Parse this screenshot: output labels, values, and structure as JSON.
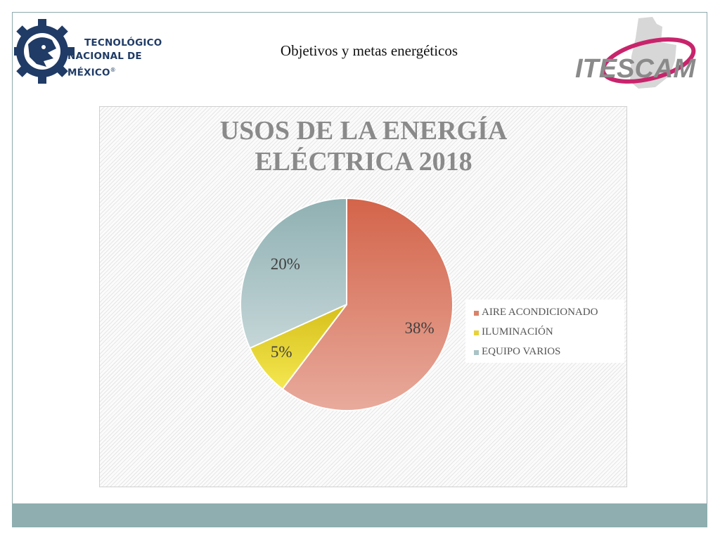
{
  "header": {
    "title": "Objetivos y metas energéticos",
    "tecnm_logo": {
      "line1": "TECNOLÓGICO",
      "line2": "NACIONAL DE MÉXICO",
      "mark": "®"
    },
    "itescam_logo": {
      "text": "ITESCAM"
    }
  },
  "chart_data": {
    "type": "pie",
    "title": "USOS  DE LA ENERGÍA\nELÉCTRICA 2018",
    "slices": [
      {
        "label": "AIRE ACONDICIONADO",
        "value": 38,
        "display": "38%",
        "color": "#d9836b"
      },
      {
        "label": "ILUMINACIÓN",
        "value": 5,
        "display": "5%",
        "color": "#e8d23a"
      },
      {
        "label": "EQUIPO VARIOS",
        "value": 20,
        "display": "20%",
        "color": "#a9c3c6"
      }
    ],
    "legend_position": "right"
  },
  "colors": {
    "footer_band": "#8eaeaf",
    "frame_border": "#8fa9ad",
    "logo_blue": "#1f3b66",
    "logo_magenta": "#c8246c",
    "logo_gray": "#8a8a8a"
  }
}
